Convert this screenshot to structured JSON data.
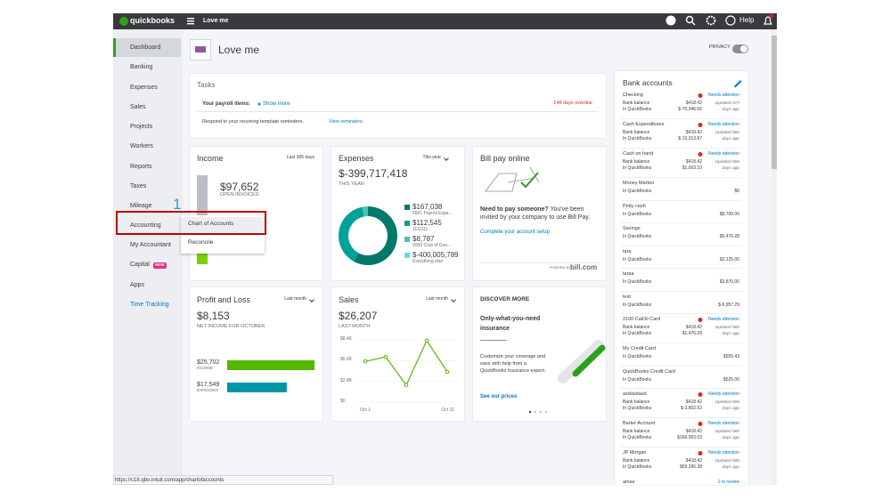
{
  "topbar": {
    "brand": "quickbooks",
    "company": "Love me",
    "help": "Help"
  },
  "sidebar": {
    "items": [
      "Dashboard",
      "Banking",
      "Expenses",
      "Sales",
      "Projects",
      "Workers",
      "Reports",
      "Taxes",
      "Mileage",
      "Accounting",
      "My Accountant",
      "Capital",
      "Apps",
      "Time Tracking"
    ],
    "badge": "NEW"
  },
  "step_number": "1",
  "flyout": [
    "Chart of Accounts",
    "Reconcile"
  ],
  "header": {
    "company": "Love me",
    "privacy": "PRIVACY"
  },
  "tasks": {
    "title": "Tasks",
    "payroll_label": "Your payroll items:",
    "show_more": "Show more",
    "overdue": "148 days overdue",
    "reminder_text": "Respond to your recurring template reminders.",
    "reminder_link": "View reminders"
  },
  "income": {
    "title": "Income",
    "period": "Last 365 days",
    "open_invoices": {
      "value": 97652,
      "label": "$97,652"
    },
    "open_invoices_caption": "OPEN INVOICES"
  },
  "expenses": {
    "title": "Expenses",
    "period": "This year",
    "total": "$-399,717,418",
    "caption": "THIS YEAR",
    "items": [
      {
        "value": 167038,
        "label": "$167,038",
        "name": "6561 Payroll Expe...",
        "color": "#00796b"
      },
      {
        "value": 112545,
        "label": "$112,545",
        "name": "1111111",
        "color": "#00a19a"
      },
      {
        "value": 8787,
        "label": "$8,787",
        "name": "5000 Cost of Goo...",
        "color": "#4fc3b8"
      },
      {
        "value": -400005789,
        "label": "$-400,005,789",
        "name": "Everything else",
        "color": "#5ce1e6"
      }
    ]
  },
  "bill_pay": {
    "title": "Bill pay online",
    "lead": "Need to pay someone?",
    "text": "You've been invited by your company to use Bill Pay.",
    "link": "Complete your account setup",
    "powered": "POWERED BY",
    "brand": "bill.com"
  },
  "profit_loss": {
    "title": "Profit and Loss",
    "period": "Last month",
    "net": "$8,153",
    "caption": "NET INCOME FOR OCTOBER",
    "income": {
      "value": 25702,
      "label": "$25,702"
    },
    "income_caption": "INCOME",
    "expenses": {
      "value": 17549,
      "label": "$17,549"
    },
    "expenses_caption": "EXPENSES"
  },
  "sales": {
    "title": "Sales",
    "period": "Last month",
    "total": "$26,207",
    "caption": "LAST MONTH",
    "ylim": [
      0,
      8400
    ],
    "yticks": [
      {
        "value": 8400,
        "label": "$8.4K"
      },
      {
        "value": 5600,
        "label": "$5.6K"
      },
      {
        "value": 2800,
        "label": "$2.8K"
      },
      {
        "value": 0,
        "label": "$0"
      }
    ],
    "values": [
      5500,
      6100,
      2300,
      8300,
      4100
    ],
    "x_labels": [
      "Oct 1",
      "Oct 31"
    ]
  },
  "discover": {
    "title": "DISCOVER MORE",
    "heading": "Only-what-you-need insurance",
    "text": "Customize your coverage and save with help from a QuickBooks Insurance expert.",
    "link": "See our prices"
  },
  "bank": {
    "title": "Bank accounts",
    "accounts": [
      {
        "name": "Checking",
        "status": "Needs attention",
        "bank_label": "Bank balance",
        "bank_balance": "$418.42",
        "updated": "Updated 377 days ago",
        "qb_label": "In QuickBooks",
        "qb_balance": "$-75,346.65"
      },
      {
        "name": "Cash Expenditures",
        "status": "Needs attention",
        "bank_label": "Bank balance",
        "bank_balance": "$418.42",
        "updated": "Updated 586 days ago",
        "qb_label": "In QuickBooks",
        "qb_balance": "$-13,313.87"
      },
      {
        "name": "Cash on hand",
        "status": "Needs attention",
        "bank_label": "Bank balance",
        "bank_balance": "$418.42",
        "updated": "Updated 586 days ago",
        "qb_label": "In QuickBooks",
        "qb_balance": "$1,003.10"
      },
      {
        "name": "Money Market",
        "qb_label": "In QuickBooks",
        "qb_balance": "$0"
      },
      {
        "name": "Petty cash",
        "qb_label": "In QuickBooks",
        "qb_balance": "$8,700.00"
      },
      {
        "name": "Savings",
        "qb_label": "In QuickBooks",
        "qb_balance": "$5,476.28"
      },
      {
        "name": "tara",
        "qb_label": "In QuickBooks",
        "qb_balance": "$2,125.00"
      },
      {
        "name": "taraa",
        "qb_label": "In QuickBooks",
        "qb_balance": "$3,870.00"
      },
      {
        "name": "test",
        "qb_label": "In QuickBooks",
        "qb_balance": "$-9,957.29"
      },
      {
        "name": "2100 CalOil Card",
        "status": "Needs attention",
        "bank_label": "Bank balance",
        "bank_balance": "$418.42",
        "updated": "Updated 586 days ago",
        "qb_label": "In QuickBooks",
        "qb_balance": "$1,476.28"
      },
      {
        "name": "My Credit Card",
        "qb_label": "In QuickBooks",
        "qb_balance": "$555.43"
      },
      {
        "name": "QuickBooks Credit Card",
        "qb_label": "In QuickBooks",
        "qb_balance": "$525.00"
      },
      {
        "name": "asdasdasd",
        "status": "Needs attention",
        "bank_label": "Bank balance",
        "bank_balance": "$418.42",
        "updated": "Updated 586 days ago",
        "qb_label": "In QuickBooks",
        "qb_balance": "$-3,802.53"
      },
      {
        "name": "Barter Account",
        "status": "Needs attention",
        "bank_label": "Bank balance",
        "bank_balance": "$418.42",
        "updated": "Updated 586 days ago",
        "qb_label": "In QuickBooks",
        "qb_balance": "$166,003.03"
      },
      {
        "name": "JP Morgan",
        "status": "Needs attention",
        "bank_label": "Bank balance",
        "bank_balance": "$418.42",
        "updated": "Updated 586 days ago",
        "qb_label": "In QuickBooks",
        "qb_balance": "$59,296.38"
      },
      {
        "name": "amax",
        "review": "2 to review"
      }
    ]
  },
  "status_url": "https://c18.qbo.intuit.com/app/chartofaccounts"
}
